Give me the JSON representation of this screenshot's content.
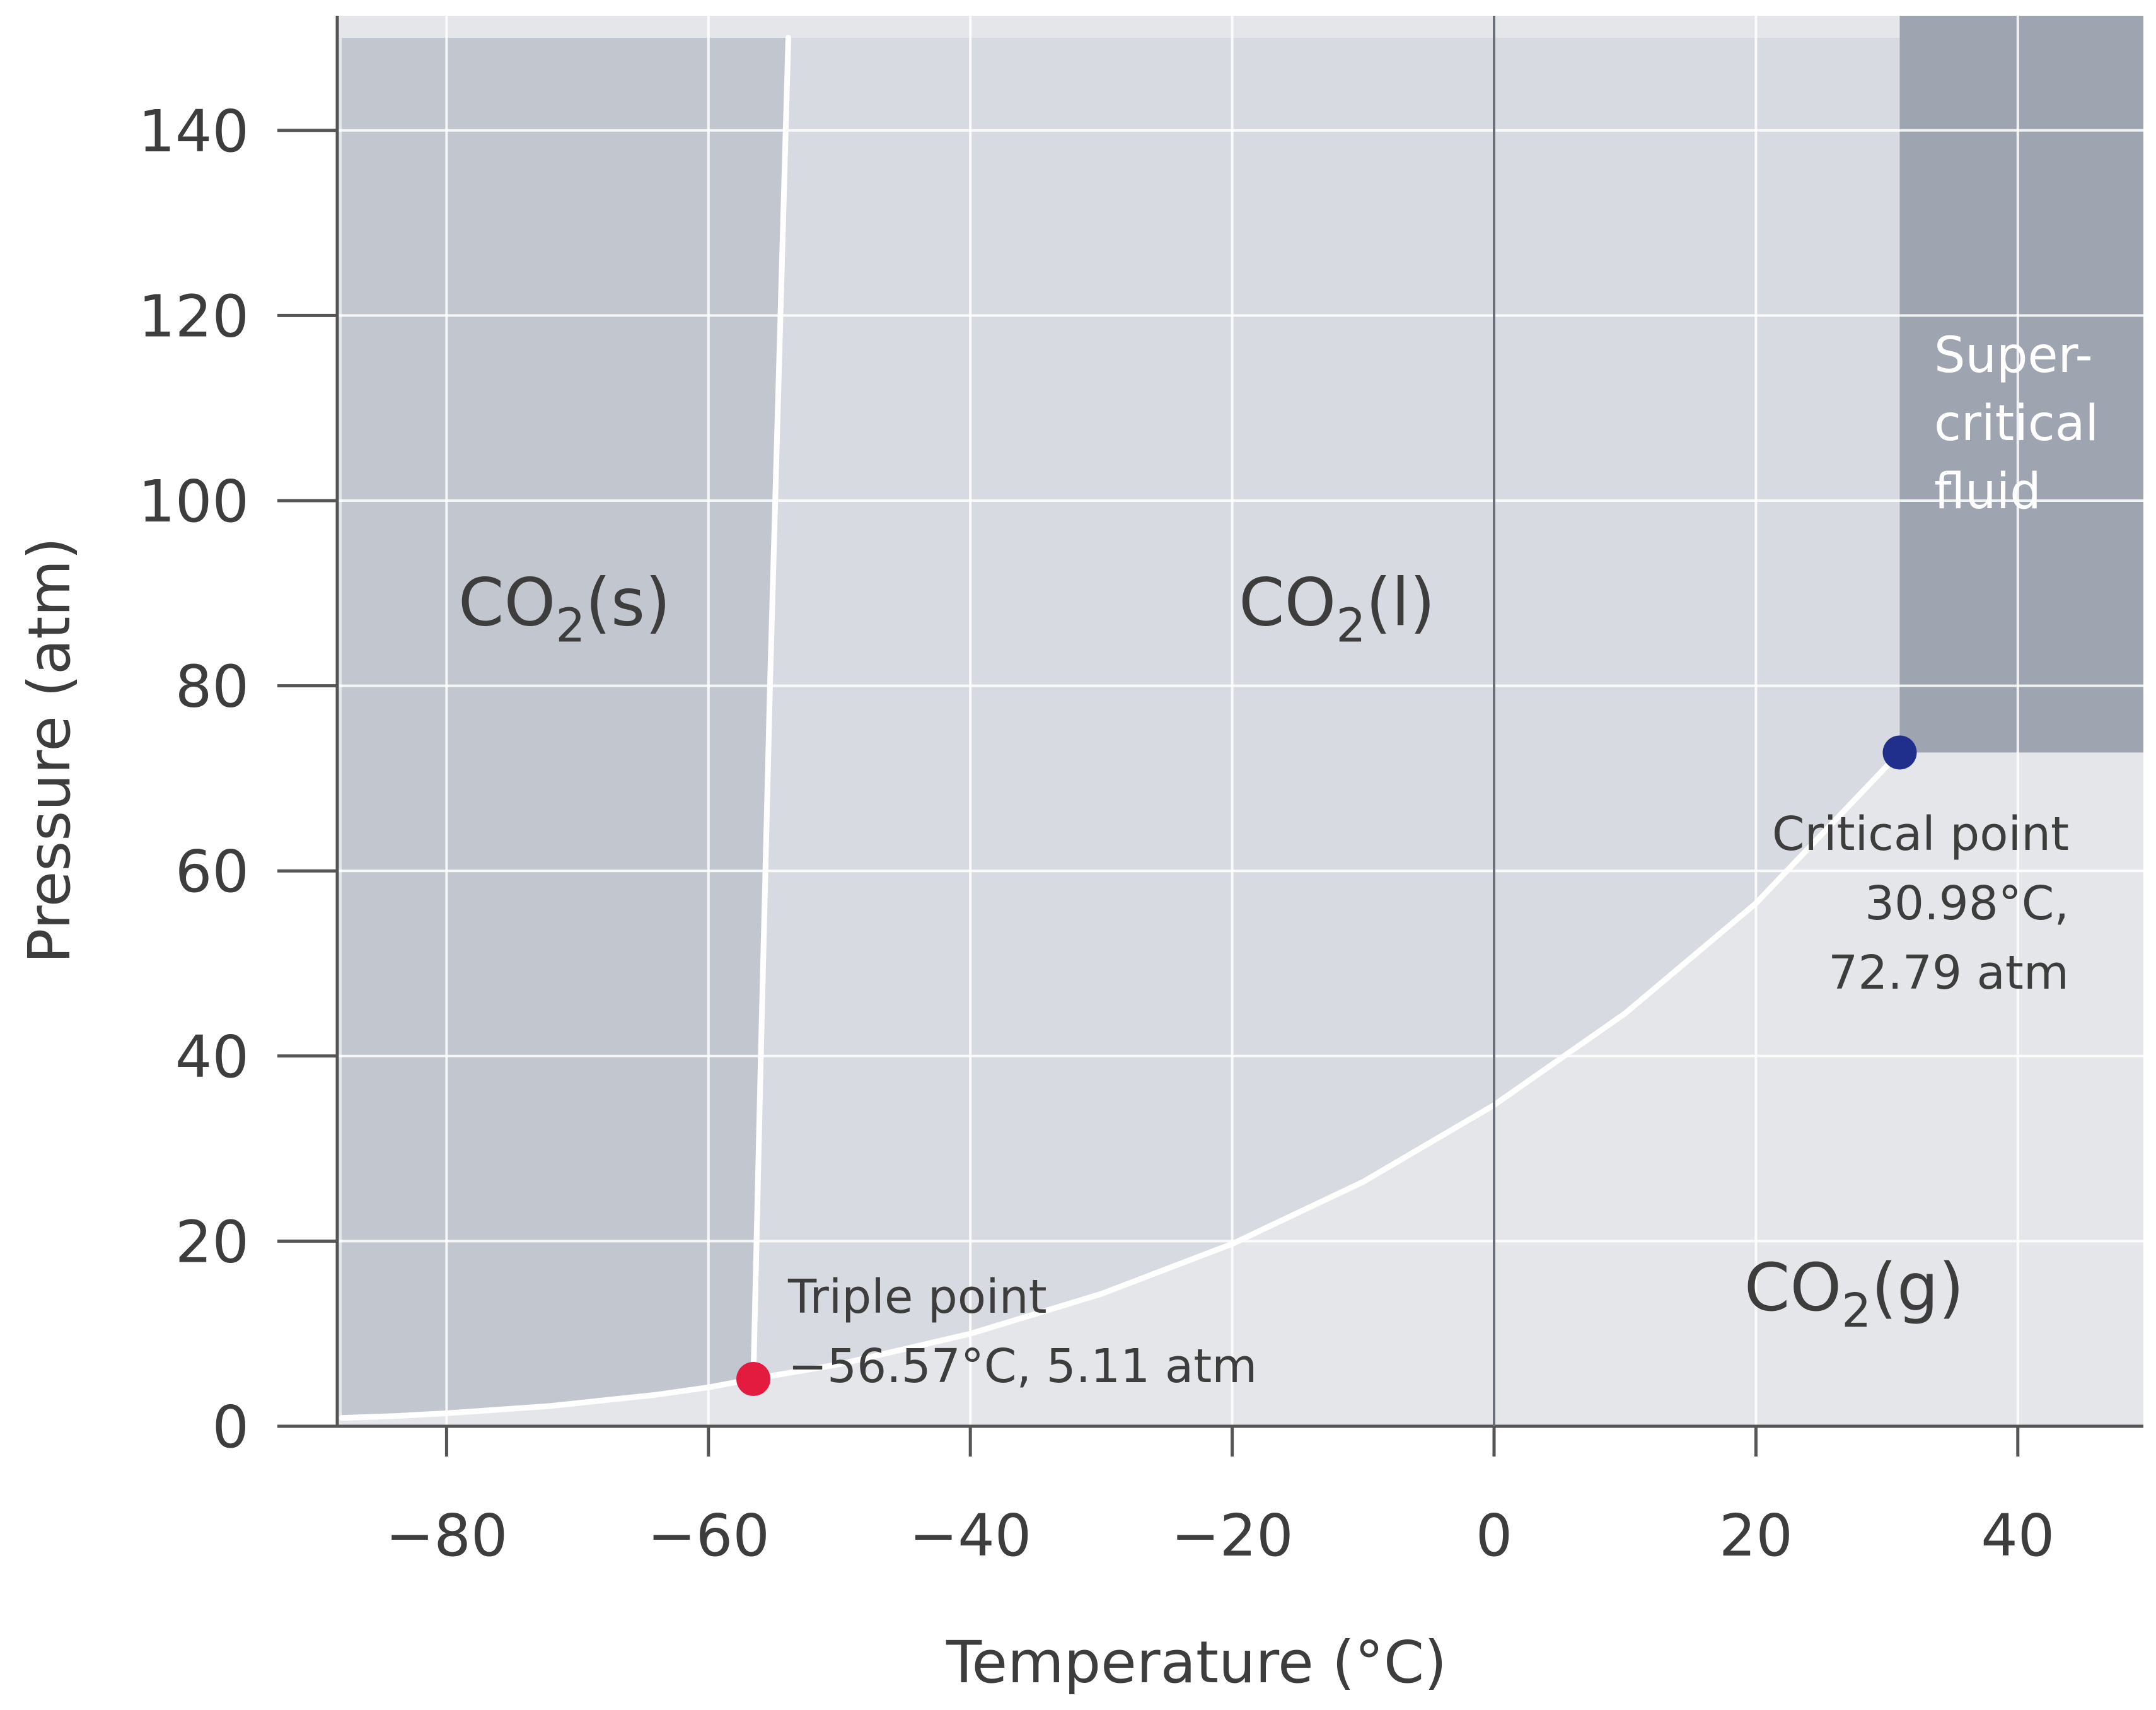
{
  "chart_data": {
    "type": "line",
    "xlabel": "Temperature (°C)",
    "ylabel": "Pressure (atm)",
    "xlim": [
      -88,
      50
    ],
    "ylim": [
      0,
      150
    ],
    "x_ticks": [
      -80,
      -60,
      -40,
      -20,
      0,
      20,
      40
    ],
    "x_tick_labels": [
      "−80",
      "−60",
      "−40",
      "−20",
      "0",
      "20",
      "40"
    ],
    "y_ticks": [
      0,
      20,
      40,
      60,
      80,
      100,
      120,
      140
    ],
    "y_tick_labels": [
      "0",
      "20",
      "40",
      "60",
      "80",
      "100",
      "120",
      "140"
    ],
    "grid": true,
    "series": [
      {
        "name": "",
        "boundary": "solid-gas",
        "x": [
          -88,
          -84,
          -80,
          -76,
          -72,
          -68,
          -64,
          -60,
          -56.57
        ],
        "y": [
          0.9,
          1.1,
          1.4,
          1.8,
          2.2,
          2.8,
          3.4,
          4.2,
          5.11
        ]
      },
      {
        "name": "",
        "boundary": "liquid-gas",
        "x": [
          -56.57,
          -50,
          -40,
          -30,
          -20,
          -10,
          0,
          10,
          20,
          30.98
        ],
        "y": [
          5.11,
          6.7,
          10.0,
          14.3,
          19.7,
          26.4,
          34.7,
          44.6,
          56.5,
          72.79
        ]
      },
      {
        "name": "",
        "boundary": "solid-liquid",
        "x": [
          -56.57,
          -56.0,
          -55.3,
          -54.5,
          -53.9
        ],
        "y": [
          5.11,
          40,
          80,
          120,
          150
        ]
      }
    ],
    "points": [
      {
        "id": "triple",
        "x": -56.57,
        "y": 5.11,
        "color": "#e31b3f",
        "label_lines": [
          "Triple point",
          "−56.57°C, 5.11 atm"
        ]
      },
      {
        "id": "critical",
        "x": 30.98,
        "y": 72.79,
        "color": "#202e8c",
        "label_lines": [
          "Critical point",
          "30.98°C,",
          "72.79 atm"
        ]
      }
    ],
    "regions": [
      {
        "id": "solid",
        "formula": "CO",
        "subscript": "2",
        "state": "(s)",
        "x": -71,
        "y": 89
      },
      {
        "id": "liquid",
        "formula": "CO",
        "subscript": "2",
        "state": "(l)",
        "x": -12,
        "y": 89
      },
      {
        "id": "gas",
        "formula": "CO",
        "subscript": "2",
        "state": "(g)",
        "x": 27.5,
        "y": 15
      },
      {
        "id": "supercritical",
        "label_lines": [
          "Super-",
          "critical",
          "fluid"
        ],
        "x": 33,
        "y": 120
      }
    ],
    "colors": {
      "solid": "#c2c7cf",
      "liquid": "#d7dbe1",
      "gas": "#e5e6ea",
      "supercritical": "#9fa5b0",
      "boundary": "#ffffff",
      "grid": "#ffffff",
      "axis": "#555555"
    }
  }
}
